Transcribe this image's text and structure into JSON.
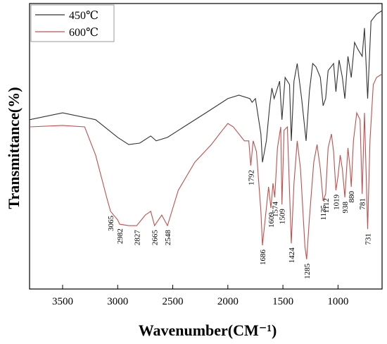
{
  "chart_data": {
    "type": "line",
    "x_label": "Wavenumber(CM⁻¹)",
    "y_label": "Transmittance(%)",
    "xlim": [
      3800,
      600
    ],
    "xticks": [
      3500,
      3000,
      2500,
      2000,
      1500,
      1000
    ],
    "ylim": [
      0,
      100
    ],
    "legend": "upper left",
    "series": [
      {
        "name": "450℃",
        "color": "#333333",
        "x": [
          3800,
          3500,
          3200,
          3000,
          2900,
          2800,
          2700,
          2650,
          2548,
          2400,
          2200,
          2000,
          1900,
          1800,
          1780,
          1750,
          1700,
          1686,
          1650,
          1620,
          1600,
          1580,
          1560,
          1530,
          1509,
          1480,
          1440,
          1424,
          1400,
          1370,
          1330,
          1290,
          1260,
          1230,
          1200,
          1160,
          1135,
          1112,
          1090,
          1040,
          1019,
          990,
          960,
          938,
          910,
          880,
          850,
          820,
          781,
          760,
          731,
          700,
          650,
          600
        ],
        "values": [
          59.3,
          61.7,
          59.3,
          53.1,
          50.6,
          51.1,
          53.6,
          51.9,
          53.1,
          56.8,
          61.7,
          66.7,
          67.9,
          66.7,
          65.4,
          66.7,
          54.3,
          44.4,
          51.9,
          64.2,
          70.4,
          66.7,
          69.1,
          72.8,
          59.3,
          74.1,
          71.6,
          51.9,
          72.8,
          79.0,
          66.7,
          51.9,
          69.1,
          79.0,
          77.8,
          74.1,
          64.2,
          66.7,
          76.5,
          79.0,
          69.1,
          80.2,
          74.1,
          66.7,
          81.5,
          74.1,
          86.4,
          84.0,
          81.5,
          91.4,
          66.7,
          93.8,
          96.3,
          97.5
        ]
      },
      {
        "name": "600℃",
        "color": "#c0504d",
        "x": [
          3800,
          3500,
          3300,
          3200,
          3100,
          3065,
          3000,
          2982,
          2900,
          2827,
          2750,
          2700,
          2665,
          2600,
          2548,
          2450,
          2300,
          2150,
          2050,
          2000,
          1950,
          1850,
          1810,
          1792,
          1770,
          1740,
          1700,
          1686,
          1660,
          1630,
          1609,
          1590,
          1574,
          1550,
          1520,
          1509,
          1490,
          1460,
          1424,
          1400,
          1370,
          1340,
          1300,
          1285,
          1260,
          1220,
          1190,
          1160,
          1135,
          1112,
          1090,
          1060,
          1040,
          1019,
          1000,
          980,
          960,
          938,
          910,
          890,
          880,
          860,
          830,
          800,
          781,
          760,
          731,
          710,
          680,
          650,
          600
        ],
        "values": [
          56.8,
          57.3,
          56.8,
          46.9,
          32.1,
          27.2,
          24.2,
          22.7,
          22.2,
          22.2,
          25.9,
          27.2,
          22.2,
          25.9,
          22.2,
          34.6,
          44.4,
          50.6,
          55.6,
          58.0,
          56.8,
          51.9,
          51.9,
          43.2,
          51.9,
          48.1,
          27.2,
          15.3,
          24.7,
          35.8,
          28.4,
          37.0,
          32.1,
          49.4,
          56.8,
          29.6,
          55.6,
          56.8,
          16.0,
          37.0,
          51.9,
          42.0,
          14.8,
          10.4,
          24.7,
          44.4,
          50.6,
          42.0,
          30.9,
          33.3,
          49.4,
          54.3,
          48.1,
          34.6,
          39.5,
          46.9,
          42.0,
          32.1,
          49.4,
          42.0,
          35.8,
          51.9,
          61.7,
          59.3,
          33.3,
          61.7,
          21.0,
          51.9,
          71.6,
          74.1,
          75.3
        ]
      }
    ],
    "annotations": [
      {
        "text": "3065",
        "x": 3065
      },
      {
        "text": "2982",
        "x": 2982
      },
      {
        "text": "2827",
        "x": 2827
      },
      {
        "text": "2665",
        "x": 2665
      },
      {
        "text": "2548",
        "x": 2548
      },
      {
        "text": "1792",
        "x": 1792
      },
      {
        "text": "1686",
        "x": 1686
      },
      {
        "text": "1609",
        "x": 1609
      },
      {
        "text": "1574",
        "x": 1574
      },
      {
        "text": "1509",
        "x": 1509
      },
      {
        "text": "1424",
        "x": 1424
      },
      {
        "text": "1285",
        "x": 1285
      },
      {
        "text": "1135",
        "x": 1135
      },
      {
        "text": "1112",
        "x": 1112
      },
      {
        "text": "1019",
        "x": 1019
      },
      {
        "text": "938",
        "x": 938
      },
      {
        "text": "880",
        "x": 880
      },
      {
        "text": "781",
        "x": 781
      },
      {
        "text": "731",
        "x": 731
      }
    ]
  }
}
